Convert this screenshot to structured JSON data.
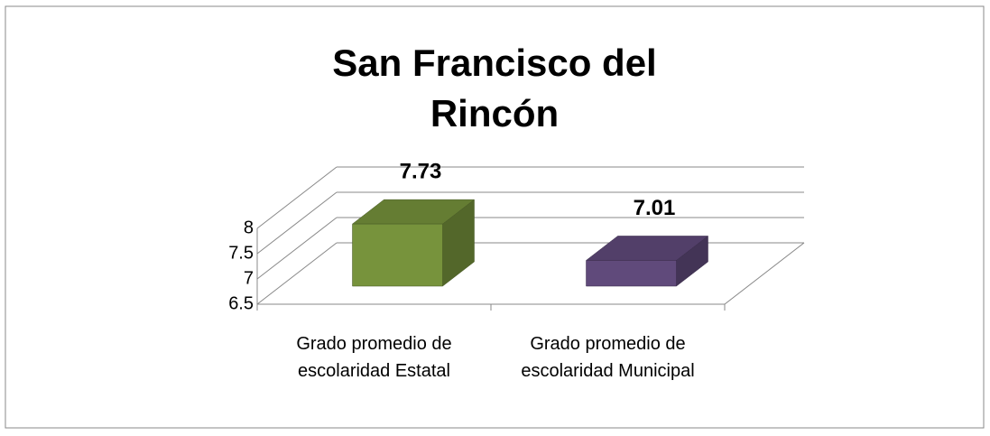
{
  "chart_data": {
    "type": "bar3d",
    "title": "San Francisco del Rincón",
    "categories": [
      "Grado promedio de escolaridad Estatal",
      "Grado promedio de escolaridad Municipal"
    ],
    "values": [
      7.73,
      7.01
    ],
    "colors": [
      "#77933c",
      "#604a7b"
    ],
    "ylim": [
      6.5,
      8
    ],
    "yticks": [
      6.5,
      7,
      7.5,
      8
    ],
    "grid": true
  }
}
